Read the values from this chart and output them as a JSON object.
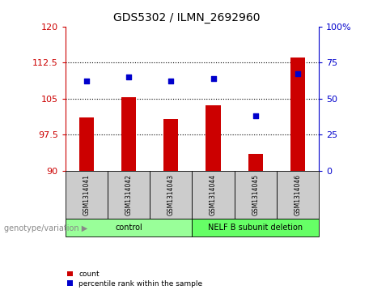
{
  "title": "GDS5302 / ILMN_2692960",
  "samples": [
    "GSM1314041",
    "GSM1314042",
    "GSM1314043",
    "GSM1314044",
    "GSM1314045",
    "GSM1314046"
  ],
  "counts": [
    101.0,
    105.2,
    100.8,
    103.5,
    93.5,
    113.5
  ],
  "percentile_ranks": [
    62,
    65,
    62,
    64,
    38,
    67
  ],
  "ylim_left": [
    90,
    120
  ],
  "ylim_right": [
    0,
    100
  ],
  "yticks_left": [
    90,
    97.5,
    105,
    112.5,
    120
  ],
  "ytick_labels_left": [
    "90",
    "97.5",
    "105",
    "112.5",
    "120"
  ],
  "yticks_right": [
    0,
    25,
    50,
    75,
    100
  ],
  "ytick_labels_right": [
    "0",
    "25",
    "50",
    "75",
    "100%"
  ],
  "bar_color": "#cc0000",
  "dot_color": "#0000cc",
  "bar_bottom": 90,
  "group_label_prefix": "genotype/variation",
  "legend_count_label": "count",
  "legend_percentile_label": "percentile rank within the sample",
  "label_area_color": "#cccccc",
  "group_area_color_control": "#99ff99",
  "group_area_color_deletion": "#66ff66",
  "group_samples_control": [
    0,
    1,
    2
  ],
  "group_samples_deletion": [
    3,
    4,
    5
  ],
  "group_label_control": "control",
  "group_label_deletion": "NELF B subunit deletion"
}
